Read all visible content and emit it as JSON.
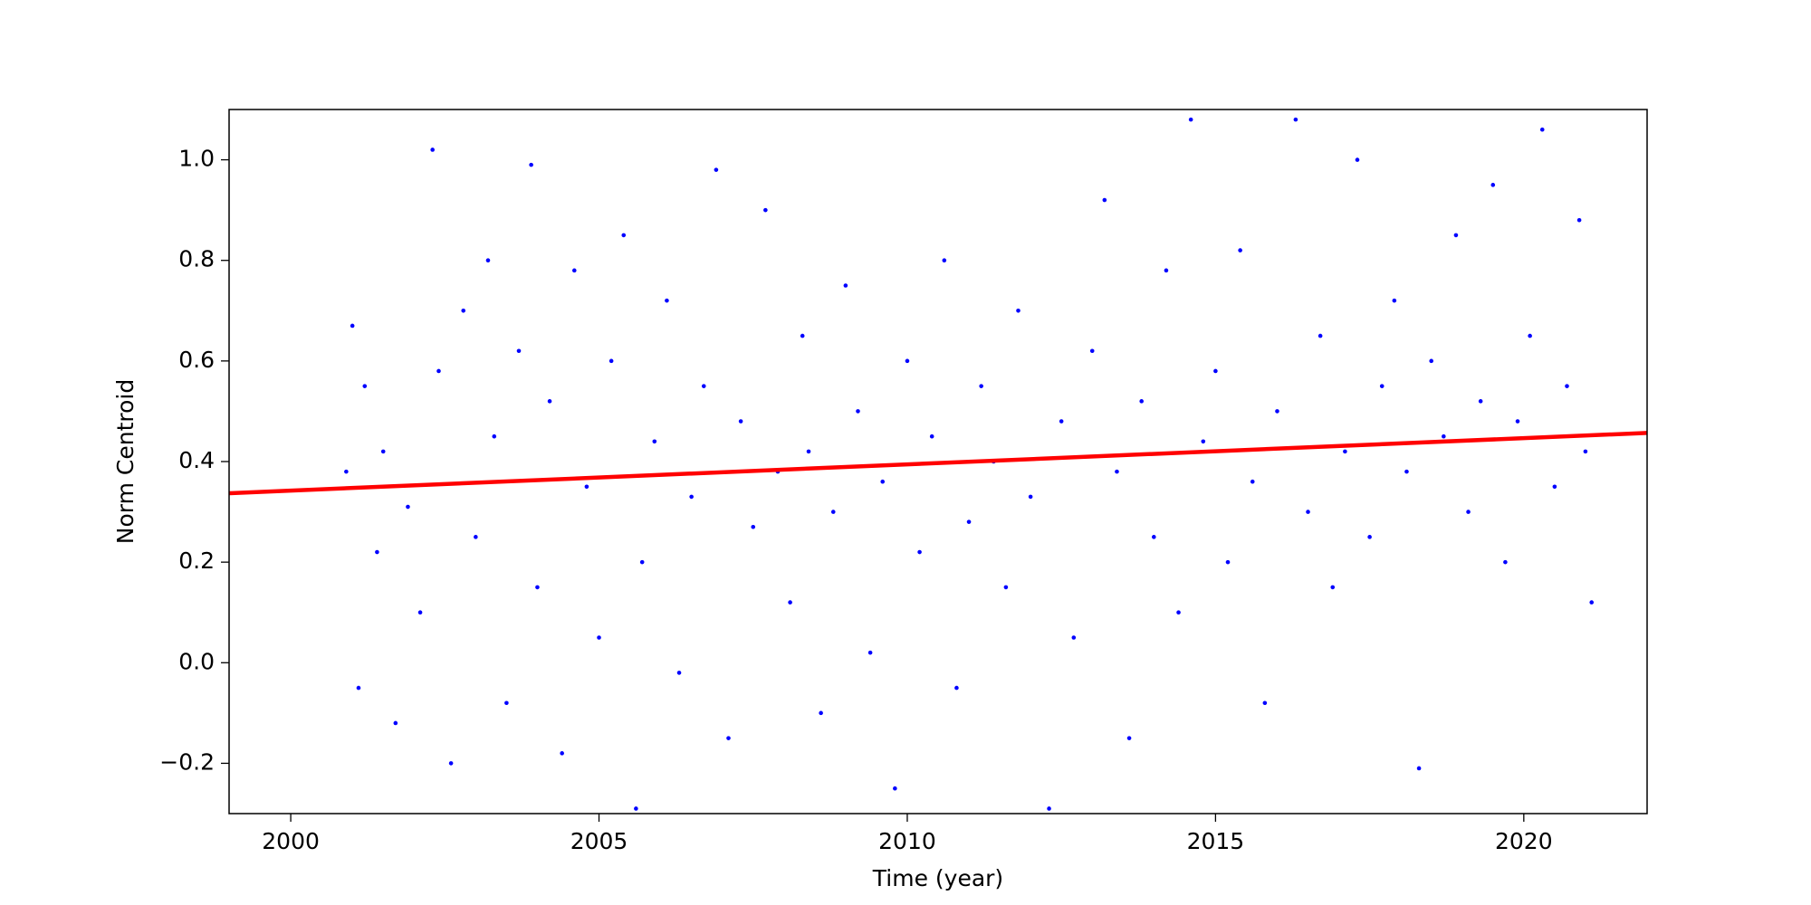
{
  "chart_data": {
    "type": "scatter",
    "x_label": "Time (year)",
    "y_label": "Norm Centroid",
    "xlim": [
      1999.0,
      2022.0
    ],
    "xticks": [
      2000,
      2005,
      2010,
      2015,
      2020
    ],
    "ylim": [
      -0.3,
      1.1
    ],
    "yticks": [
      {
        "value": -0.2,
        "label": "−0.2"
      },
      {
        "value": 0,
        "label": "0.0"
      },
      0.2,
      0.4,
      0.6,
      0.8,
      {
        "value": 1.0,
        "label": "1.0"
      }
    ],
    "series": [
      {
        "type": "scatter",
        "color": "#0000ff",
        "x": [
          2000.9,
          2001.0,
          2001.1,
          2001.2,
          2001.4,
          2001.5,
          2001.7,
          2001.9,
          2002.1,
          2002.3,
          2002.4,
          2002.6,
          2002.8,
          2003.0,
          2003.2,
          2003.3,
          2003.5,
          2003.7,
          2003.9,
          2004.0,
          2004.2,
          2004.4,
          2004.6,
          2004.8,
          2005.0,
          2005.2,
          2005.4,
          2005.6,
          2005.7,
          2005.9,
          2006.1,
          2006.3,
          2006.5,
          2006.7,
          2006.9,
          2007.1,
          2007.3,
          2007.5,
          2007.7,
          2007.9,
          2008.1,
          2008.3,
          2008.4,
          2008.6,
          2008.8,
          2009.0,
          2009.2,
          2009.4,
          2009.6,
          2009.8,
          2010.0,
          2010.2,
          2010.4,
          2010.6,
          2010.8,
          2011.0,
          2011.2,
          2011.4,
          2011.6,
          2011.8,
          2012.0,
          2012.3,
          2012.5,
          2012.7,
          2013.0,
          2013.2,
          2013.4,
          2013.6,
          2013.8,
          2014.0,
          2014.2,
          2014.4,
          2014.6,
          2014.8,
          2015.0,
          2015.2,
          2015.4,
          2015.6,
          2015.8,
          2016.0,
          2016.3,
          2016.5,
          2016.7,
          2016.9,
          2017.1,
          2017.3,
          2017.5,
          2017.7,
          2017.9,
          2018.1,
          2018.3,
          2018.5,
          2018.7,
          2018.9,
          2019.1,
          2019.3,
          2019.5,
          2019.7,
          2019.9,
          2020.1,
          2020.3,
          2020.5,
          2020.7,
          2020.9,
          2021.0,
          2021.1
        ],
        "values": [
          0.38,
          0.67,
          -0.05,
          0.55,
          0.22,
          0.42,
          -0.12,
          0.31,
          0.1,
          1.02,
          0.58,
          -0.2,
          0.7,
          0.25,
          0.8,
          0.45,
          -0.08,
          0.62,
          0.99,
          0.15,
          0.52,
          -0.18,
          0.78,
          0.35,
          0.05,
          0.6,
          0.85,
          -0.29,
          0.2,
          0.44,
          0.72,
          -0.02,
          0.33,
          0.55,
          0.98,
          -0.15,
          0.48,
          0.27,
          0.9,
          0.38,
          0.12,
          0.65,
          0.42,
          -0.1,
          0.3,
          0.75,
          0.5,
          0.02,
          0.36,
          -0.25,
          0.6,
          0.22,
          0.45,
          0.8,
          -0.05,
          0.28,
          0.55,
          0.4,
          0.15,
          0.7,
          0.33,
          -0.29,
          0.48,
          0.05,
          0.62,
          0.92,
          0.38,
          -0.15,
          0.52,
          0.25,
          0.78,
          0.1,
          1.08,
          0.44,
          0.58,
          0.2,
          0.82,
          0.36,
          -0.08,
          0.5,
          1.08,
          0.3,
          0.65,
          0.15,
          0.42,
          1.0,
          0.25,
          0.55,
          0.72,
          0.38,
          -0.21,
          0.6,
          0.45,
          0.85,
          0.3,
          0.52,
          0.95,
          0.2,
          0.48,
          0.65,
          1.06,
          0.35,
          0.55,
          0.88,
          0.42,
          0.12
        ]
      },
      {
        "type": "line",
        "color": "#ff0000",
        "x": [
          1999.0,
          2022.0
        ],
        "values": [
          0.337,
          0.457
        ]
      }
    ]
  }
}
